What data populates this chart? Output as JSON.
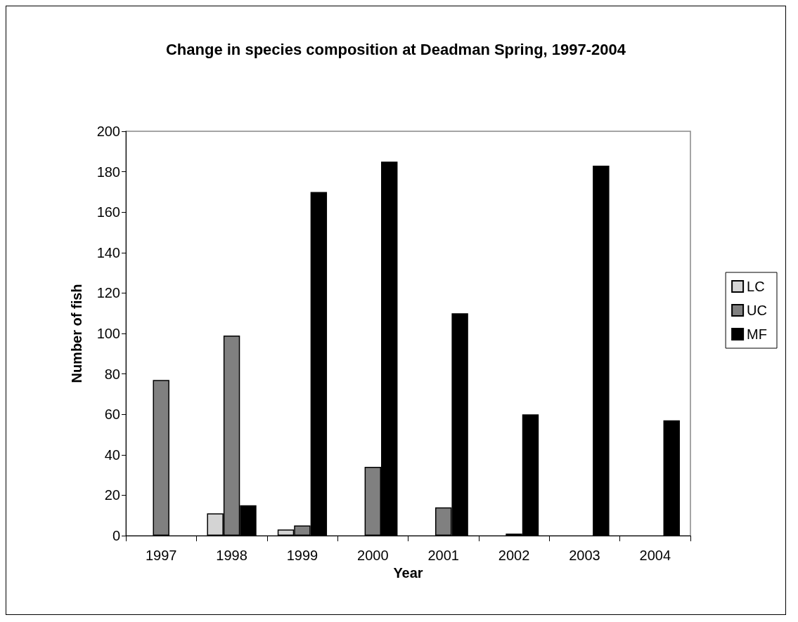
{
  "chart_data": {
    "type": "bar",
    "title": "Change in species composition at Deadman Spring, 1997-2004",
    "xlabel": "Year",
    "ylabel": "Number of fish",
    "categories": [
      "1997",
      "1998",
      "1999",
      "2000",
      "2001",
      "2002",
      "2003",
      "2004"
    ],
    "series": [
      {
        "name": "LC",
        "color": "#d4d4d4",
        "values": [
          null,
          11,
          3,
          null,
          null,
          null,
          null,
          null
        ]
      },
      {
        "name": "UC",
        "color": "#808080",
        "values": [
          77,
          99,
          5,
          34,
          14,
          1,
          null,
          null
        ]
      },
      {
        "name": "MF",
        "color": "#000000",
        "values": [
          null,
          15,
          170,
          185,
          110,
          60,
          183,
          57
        ]
      }
    ],
    "ylim": [
      0,
      200
    ],
    "yticks": [
      0,
      20,
      40,
      60,
      80,
      100,
      120,
      140,
      160,
      180,
      200
    ],
    "grid": false,
    "legend": "right"
  }
}
